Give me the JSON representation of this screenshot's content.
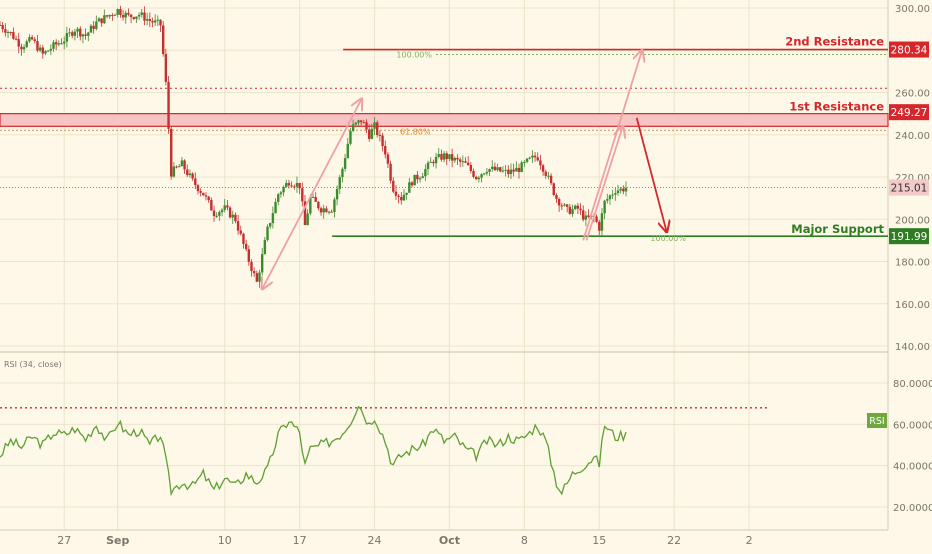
{
  "colors": {
    "background": "#fdf8e8",
    "grid": "#ebe4cc",
    "axis_text": "#7a7568",
    "candle_up": "#3d8b2e",
    "candle_down": "#c42f2f",
    "resistance": "#d7262b",
    "support": "#2e7d22",
    "band_fill": "#f7c4c4",
    "band_border": "#d7262b",
    "projection": "#f0a0a4",
    "forecast": "#d7262b",
    "fib": "#7fb25a",
    "fib_orange": "#e08a3a",
    "price_line": "#d7262b",
    "rsi_line": "#5f9e35",
    "rsi_level": "#d7262b",
    "rsi_badge": "#6fa83f",
    "label_white": "#ffffff"
  },
  "chart_data": [
    {
      "type": "candlestick",
      "x_unit": "days",
      "x_range": [
        -20,
        67
      ],
      "xticks": [
        {
          "x": -14,
          "label": "27"
        },
        {
          "x": -9,
          "label": "Sep"
        },
        {
          "x": 1,
          "label": "10"
        },
        {
          "x": 8,
          "label": "17"
        },
        {
          "x": 15,
          "label": "24"
        },
        {
          "x": 22,
          "label": "Oct"
        },
        {
          "x": 29,
          "label": "8"
        },
        {
          "x": 36,
          "label": "15"
        },
        {
          "x": 43,
          "label": "22"
        },
        {
          "x": 50,
          "label": "2"
        }
      ],
      "ylim": [
        140,
        300
      ],
      "yticks": [
        "140.00",
        "160.00",
        "180.00",
        "200.00",
        "220.00",
        "240.00",
        "260.00",
        "280.00",
        "300.00"
      ],
      "close_path": [
        [
          -20,
          292
        ],
        [
          -19,
          288
        ],
        [
          -18,
          282
        ],
        [
          -17,
          285
        ],
        [
          -16,
          278
        ],
        [
          -15,
          282
        ],
        [
          -14,
          285
        ],
        [
          -13,
          290
        ],
        [
          -12,
          287
        ],
        [
          -11,
          293
        ],
        [
          -10,
          296
        ],
        [
          -9,
          299
        ],
        [
          -8,
          296
        ],
        [
          -7,
          297
        ],
        [
          -6,
          294
        ],
        [
          -5,
          292
        ],
        [
          -4.5,
          264
        ],
        [
          -4,
          222
        ],
        [
          -3,
          226
        ],
        [
          -2,
          218
        ],
        [
          -1,
          212
        ],
        [
          0,
          203
        ],
        [
          1,
          205
        ],
        [
          2,
          200
        ],
        [
          3,
          184
        ],
        [
          4,
          170
        ],
        [
          5,
          195
        ],
        [
          6,
          212
        ],
        [
          7,
          218
        ],
        [
          8,
          216
        ],
        [
          8.5,
          197
        ],
        [
          9,
          210
        ],
        [
          10,
          205
        ],
        [
          11,
          205
        ],
        [
          12,
          224
        ],
        [
          12.8,
          243
        ],
        [
          13.8,
          247
        ],
        [
          14.5,
          240
        ],
        [
          15,
          244
        ],
        [
          16,
          232
        ],
        [
          16.7,
          215
        ],
        [
          17.5,
          210
        ],
        [
          18.5,
          218
        ],
        [
          19.5,
          222
        ],
        [
          20.5,
          228
        ],
        [
          21.5,
          230
        ],
        [
          22.5,
          228
        ],
        [
          23.5,
          226
        ],
        [
          24.5,
          220
        ],
        [
          25.5,
          224
        ],
        [
          26.5,
          223
        ],
        [
          27.5,
          222
        ],
        [
          28.5,
          224
        ],
        [
          29.5,
          228
        ],
        [
          30.2,
          230
        ],
        [
          31,
          222
        ],
        [
          32,
          210
        ],
        [
          33,
          204
        ],
        [
          34,
          205
        ],
        [
          34.7,
          200
        ],
        [
          35.5,
          201
        ],
        [
          36,
          196
        ],
        [
          36.5,
          208
        ],
        [
          37.5,
          214
        ],
        [
          38,
          214
        ],
        [
          38.5,
          215
        ]
      ],
      "last_price": "215.01",
      "annotations": {
        "resistance_2": {
          "label": "2nd Resistance",
          "value": "280.34",
          "fib_label": "100.00%",
          "fib_value": 278
        },
        "resistance_1": {
          "label": "1st Resistance",
          "value": "249.27",
          "fib_label": "61.80%",
          "band": [
            244,
            250
          ]
        },
        "support": {
          "label": "Major Support",
          "value": "191.99",
          "fib_label": "100.00%"
        },
        "extra_dotted_level": 262,
        "projection_arrows": [
          [
            [
              4.5,
              167
            ],
            [
              13.8,
              257
            ]
          ],
          [
            [
              34.5,
              190
            ],
            [
              40,
              280
            ]
          ],
          [
            [
              34.8,
              190
            ],
            [
              38.2,
              244
            ]
          ]
        ],
        "forecast_arrow": [
          [
            39.5,
            248
          ],
          [
            42.3,
            194
          ]
        ]
      }
    },
    {
      "type": "line",
      "title": "RSI (34, close)",
      "ylim": [
        17,
        80
      ],
      "yticks": [
        "20.0000",
        "40.0000",
        "60.0000",
        "80.0000"
      ],
      "level": 68,
      "badge": "RSI",
      "values": [
        [
          -20,
          45
        ],
        [
          -19,
          52
        ],
        [
          -18,
          49
        ],
        [
          -17,
          54
        ],
        [
          -16,
          50
        ],
        [
          -15,
          56
        ],
        [
          -14,
          55
        ],
        [
          -13,
          58
        ],
        [
          -12,
          53
        ],
        [
          -11,
          60
        ],
        [
          -10,
          52
        ],
        [
          -9,
          61
        ],
        [
          -8,
          55
        ],
        [
          -7,
          57
        ],
        [
          -6,
          50
        ],
        [
          -5,
          55
        ],
        [
          -4.5,
          42
        ],
        [
          -4,
          28
        ],
        [
          -3,
          32
        ],
        [
          -2,
          30
        ],
        [
          -1,
          36
        ],
        [
          0,
          28
        ],
        [
          1,
          34
        ],
        [
          2,
          30
        ],
        [
          3,
          36
        ],
        [
          4,
          32
        ],
        [
          5,
          38
        ],
        [
          6,
          55
        ],
        [
          7,
          62
        ],
        [
          8,
          56
        ],
        [
          8.5,
          40
        ],
        [
          9,
          48
        ],
        [
          10,
          50
        ],
        [
          11,
          52
        ],
        [
          12,
          56
        ],
        [
          12.8,
          62
        ],
        [
          13.5,
          70
        ],
        [
          14.5,
          60
        ],
        [
          15,
          64
        ],
        [
          16,
          52
        ],
        [
          16.7,
          40
        ],
        [
          17.5,
          45
        ],
        [
          18.5,
          48
        ],
        [
          19.5,
          50
        ],
        [
          20.5,
          58
        ],
        [
          21.5,
          52
        ],
        [
          22.5,
          54
        ],
        [
          23.5,
          48
        ],
        [
          24.5,
          45
        ],
        [
          25.5,
          52
        ],
        [
          26.5,
          50
        ],
        [
          27.5,
          54
        ],
        [
          28.5,
          52
        ],
        [
          29.5,
          56
        ],
        [
          30.2,
          60
        ],
        [
          31,
          52
        ],
        [
          32,
          32
        ],
        [
          32.5,
          27
        ],
        [
          33.5,
          36
        ],
        [
          34.5,
          40
        ],
        [
          35.5,
          44
        ],
        [
          36,
          41
        ],
        [
          36.5,
          60
        ],
        [
          37.5,
          54
        ],
        [
          38.5,
          55
        ]
      ]
    }
  ]
}
